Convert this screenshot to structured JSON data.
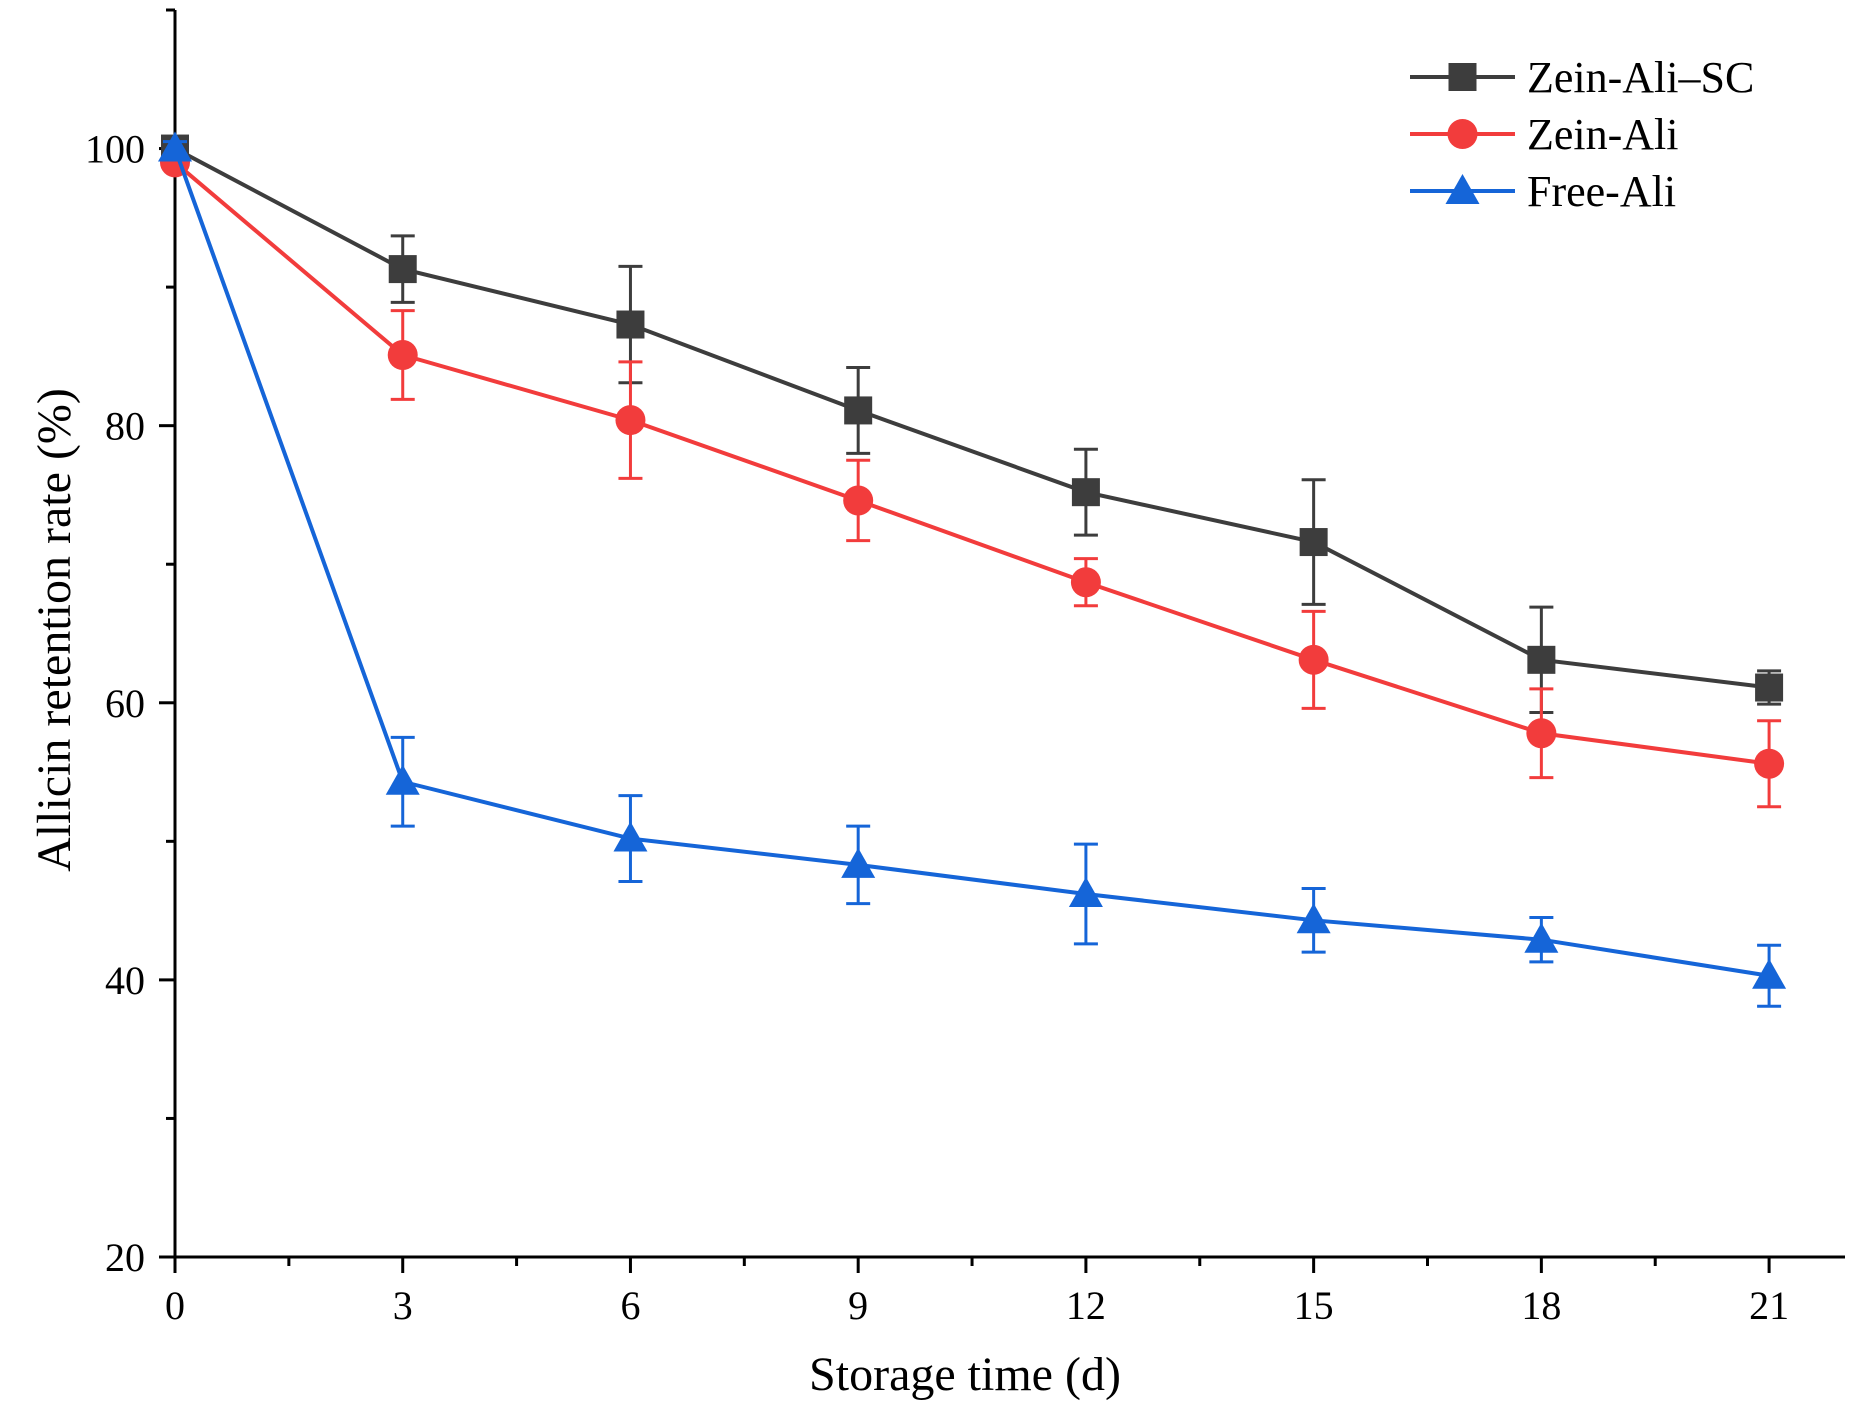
{
  "chart_data": {
    "type": "line",
    "title": "",
    "xlabel": "Storage time (d)",
    "ylabel": "Allicin retention rate (%)",
    "xlim": [
      0,
      22
    ],
    "ylim": [
      20,
      110
    ],
    "x": [
      0,
      3,
      6,
      9,
      12,
      15,
      18,
      21
    ],
    "xticks": [
      0,
      3,
      6,
      9,
      12,
      15,
      18,
      21
    ],
    "xtick_labels": [
      "0",
      "3",
      "6",
      "9",
      "12",
      "15",
      "18",
      "21"
    ],
    "yticks": [
      20,
      40,
      60,
      80,
      100
    ],
    "ytick_labels": [
      "20",
      "40",
      "60",
      "80",
      "100"
    ],
    "grid": false,
    "legend_position": "top-right",
    "series": [
      {
        "name": "Zein-Ali–SC",
        "color": "#3d3d3d",
        "marker": "square",
        "values": [
          100,
          91.3,
          87.3,
          81.1,
          75.2,
          71.6,
          63.1,
          61.1
        ],
        "errors": [
          0.5,
          2.4,
          4.2,
          3.1,
          3.1,
          4.5,
          3.8,
          1.2
        ]
      },
      {
        "name": "Zein-Ali",
        "color": "#f23c3c",
        "marker": "circle",
        "values": [
          99,
          85.1,
          80.4,
          74.6,
          68.7,
          63.1,
          57.8,
          55.6
        ],
        "errors": [
          0.5,
          3.2,
          4.2,
          2.9,
          1.7,
          3.5,
          3.2,
          3.1
        ]
      },
      {
        "name": "Free-Ali",
        "color": "#1565d8",
        "marker": "triangle",
        "values": [
          100,
          54.3,
          50.2,
          48.3,
          46.2,
          44.3,
          42.9,
          40.3
        ],
        "errors": [
          0.5,
          3.2,
          3.1,
          2.8,
          3.6,
          2.3,
          1.6,
          2.2
        ]
      }
    ]
  }
}
